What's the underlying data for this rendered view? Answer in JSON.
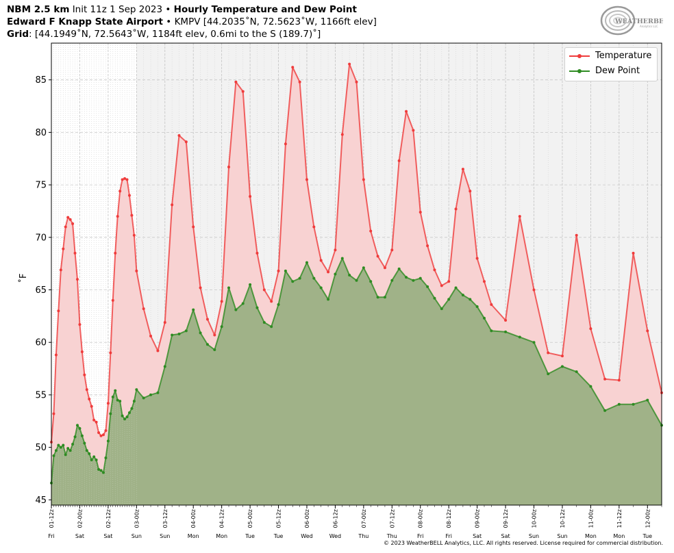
{
  "header": {
    "model": "NBM 2.5 km",
    "init": "Init 11z 1 Sep 2023",
    "bullet": "•",
    "product": "Hourly Temperature and Dew Point",
    "station_name": "Edward F Knapp State Airport",
    "station_info": "KMPV [44.2035˚N, 72.5623˚W, 1166ft elev]",
    "grid_label": "Grid",
    "grid_info": ": [44.1949˚N, 72.5643˚W, 1184ft elev, 0.6mi to the S (189.7)˚]"
  },
  "logo": {
    "text": "WEATHERBELL",
    "sub": "Analytics LLC"
  },
  "copyright": "© 2023 WeatherBELL Analytics, LLC. All rights reserved. License required for commercial distribution.",
  "colors": {
    "temperature": "#ef3b3b",
    "temperature_fill": "#f8d2d2",
    "dewpoint": "#2e8b22",
    "dewpoint_fill": "#a0b288",
    "future_bg": "#f2f2f2"
  },
  "chart_data": {
    "type": "line",
    "ylabel": "˚F",
    "ylim": [
      44.5,
      88.5
    ],
    "yticks": [
      45,
      50,
      55,
      60,
      65,
      70,
      75,
      80,
      85
    ],
    "x_unit": "hours after 01-12z",
    "xlim": [
      0,
      258
    ],
    "grid": true,
    "legend_position": "top-right",
    "x_tick_labels": [
      {
        "x": 0,
        "label": "01-12z",
        "day": "Fri"
      },
      {
        "x": 12,
        "label": "02-00z",
        "day": "Sat"
      },
      {
        "x": 24,
        "label": "02-12z",
        "day": "Sat"
      },
      {
        "x": 36,
        "label": "03-00z",
        "day": "Sun"
      },
      {
        "x": 48,
        "label": "03-12z",
        "day": "Sun"
      },
      {
        "x": 60,
        "label": "04-00z",
        "day": "Mon"
      },
      {
        "x": 72,
        "label": "04-12z",
        "day": "Mon"
      },
      {
        "x": 84,
        "label": "05-00z",
        "day": "Tue"
      },
      {
        "x": 96,
        "label": "05-12z",
        "day": "Tue"
      },
      {
        "x": 108,
        "label": "06-00z",
        "day": "Wed"
      },
      {
        "x": 120,
        "label": "06-12z",
        "day": "Wed"
      },
      {
        "x": 132,
        "label": "07-00z",
        "day": "Thu"
      },
      {
        "x": 144,
        "label": "07-12z",
        "day": "Thu"
      },
      {
        "x": 156,
        "label": "08-00z",
        "day": "Fri"
      },
      {
        "x": 168,
        "label": "08-12z",
        "day": "Fri"
      },
      {
        "x": 180,
        "label": "09-00z",
        "day": "Sat"
      },
      {
        "x": 192,
        "label": "09-12z",
        "day": "Sat"
      },
      {
        "x": 204,
        "label": "10-00z",
        "day": "Sun"
      },
      {
        "x": 216,
        "label": "10-12z",
        "day": "Sun"
      },
      {
        "x": 228,
        "label": "11-00z",
        "day": "Mon"
      },
      {
        "x": 240,
        "label": "11-12z",
        "day": "Mon"
      },
      {
        "x": 252,
        "label": "12-00z",
        "day": "Tue"
      }
    ],
    "series": [
      {
        "name": "Temperature",
        "x": [
          0,
          1,
          2,
          3,
          4,
          5,
          6,
          7,
          8,
          9,
          10,
          11,
          12,
          13,
          14,
          15,
          16,
          17,
          18,
          19,
          20,
          21,
          22,
          23,
          24,
          25,
          26,
          27,
          28,
          29,
          30,
          31,
          32,
          33,
          34,
          35,
          36,
          39,
          42,
          45,
          48,
          51,
          54,
          57,
          60,
          63,
          66,
          69,
          72,
          75,
          78,
          81,
          84,
          87,
          90,
          93,
          96,
          99,
          102,
          105,
          108,
          111,
          114,
          117,
          120,
          123,
          126,
          129,
          132,
          135,
          138,
          141,
          144,
          147,
          150,
          153,
          156,
          159,
          162,
          165,
          168,
          171,
          174,
          177,
          180,
          183,
          186,
          192,
          198,
          204,
          210,
          216,
          222,
          228,
          234,
          240,
          246,
          252,
          258
        ],
        "y": [
          50.5,
          53.2,
          58.8,
          63.0,
          66.9,
          68.9,
          71.0,
          71.9,
          71.7,
          71.3,
          68.5,
          66.0,
          61.7,
          59.1,
          56.9,
          55.5,
          54.6,
          53.9,
          52.6,
          52.4,
          51.4,
          51.1,
          51.2,
          51.6,
          54.2,
          59.0,
          64.0,
          68.5,
          72.0,
          74.4,
          75.5,
          75.6,
          75.5,
          74.0,
          72.1,
          70.2,
          66.8,
          63.2,
          60.6,
          59.2,
          61.9,
          73.1,
          79.7,
          79.1,
          71.0,
          65.2,
          62.2,
          60.7,
          63.9,
          76.7,
          84.8,
          83.9,
          73.9,
          68.5,
          65.0,
          63.9,
          66.8,
          78.9,
          86.2,
          84.8,
          75.5,
          71.0,
          67.8,
          66.7,
          68.8,
          79.8,
          86.5,
          84.8,
          75.5,
          70.6,
          68.2,
          67.1,
          68.8,
          77.3,
          82.0,
          80.2,
          72.4,
          69.2,
          66.9,
          65.4,
          65.8,
          72.7,
          76.5,
          74.4,
          68.0,
          65.8,
          63.6,
          62.1,
          72.0,
          65.0,
          59.0,
          58.7,
          70.2,
          61.3,
          56.5,
          56.4,
          68.5,
          61.1,
          55.2
        ]
      },
      {
        "name": "Dew Point",
        "x": [
          0,
          1,
          2,
          3,
          4,
          5,
          6,
          7,
          8,
          9,
          10,
          11,
          12,
          13,
          14,
          15,
          16,
          17,
          18,
          19,
          20,
          21,
          22,
          23,
          24,
          25,
          26,
          27,
          28,
          29,
          30,
          31,
          32,
          33,
          34,
          35,
          36,
          39,
          42,
          45,
          48,
          51,
          54,
          57,
          60,
          63,
          66,
          69,
          72,
          75,
          78,
          81,
          84,
          87,
          90,
          93,
          96,
          99,
          102,
          105,
          108,
          111,
          114,
          117,
          120,
          123,
          126,
          129,
          132,
          135,
          138,
          141,
          144,
          147,
          150,
          153,
          156,
          159,
          162,
          165,
          168,
          171,
          174,
          177,
          180,
          183,
          186,
          192,
          198,
          204,
          210,
          216,
          222,
          228,
          234,
          240,
          246,
          252,
          258
        ],
        "y": [
          46.6,
          49.2,
          49.7,
          50.2,
          50.0,
          50.2,
          49.3,
          49.9,
          49.7,
          50.3,
          51.0,
          52.1,
          51.8,
          51.1,
          50.4,
          49.7,
          49.4,
          48.8,
          49.1,
          48.8,
          47.9,
          47.8,
          47.6,
          49.0,
          50.6,
          53.2,
          54.8,
          55.4,
          54.5,
          54.4,
          53.0,
          52.7,
          52.9,
          53.3,
          53.7,
          54.4,
          55.5,
          54.7,
          55.0,
          55.2,
          57.7,
          60.7,
          60.8,
          61.1,
          63.1,
          60.9,
          59.8,
          59.3,
          61.5,
          65.2,
          63.1,
          63.7,
          65.5,
          63.3,
          61.9,
          61.5,
          63.6,
          66.8,
          65.8,
          66.1,
          67.6,
          66.1,
          65.2,
          64.1,
          66.5,
          68.0,
          66.4,
          65.9,
          67.1,
          65.8,
          64.3,
          64.3,
          65.9,
          67.0,
          66.2,
          65.9,
          66.1,
          65.3,
          64.2,
          63.2,
          64.1,
          65.2,
          64.5,
          64.1,
          63.4,
          62.3,
          61.1,
          61.0,
          60.5,
          60.0,
          57.0,
          57.7,
          57.2,
          55.8,
          53.5,
          54.1,
          54.1,
          54.5,
          52.1
        ]
      }
    ]
  }
}
